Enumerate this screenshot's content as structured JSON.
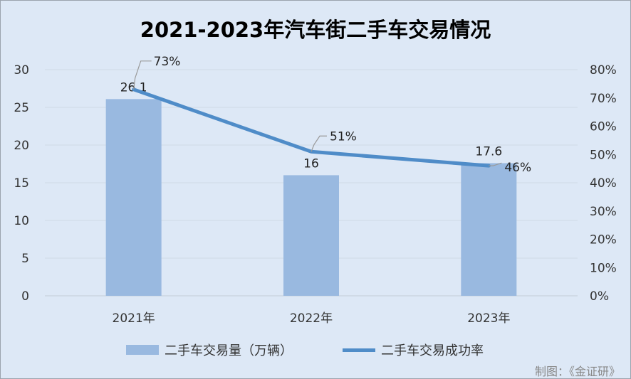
{
  "chart_data": {
    "type": "bar",
    "title": "2021-2023年汽车街二手车交易情况",
    "categories": [
      "2021年",
      "2022年",
      "2023年"
    ],
    "series": [
      {
        "name": "二手车交易量（万辆）",
        "type": "bar",
        "axis": "left",
        "values": [
          26.1,
          16,
          17.6
        ],
        "labels": [
          "26.1",
          "16",
          "17.6"
        ]
      },
      {
        "name": "二手车交易成功率",
        "type": "line",
        "axis": "right",
        "values": [
          0.73,
          0.51,
          0.46
        ],
        "labels": [
          "73%",
          "51%",
          "46%"
        ]
      }
    ],
    "ylim_left": [
      0,
      30
    ],
    "left_ticks": [
      "0",
      "5",
      "10",
      "15",
      "20",
      "25",
      "30"
    ],
    "ylim_right": [
      0,
      0.8
    ],
    "right_ticks": [
      "0%",
      "10%",
      "20%",
      "30%",
      "40%",
      "50%",
      "60%",
      "70%",
      "80%"
    ],
    "grid": true,
    "legend": "bottom",
    "colors": {
      "bar": "#99b9e0",
      "line": "#4f8cc8",
      "background": "#dde8f6",
      "grid": "#d0dae6"
    }
  },
  "credit": "制图：《金证研》"
}
